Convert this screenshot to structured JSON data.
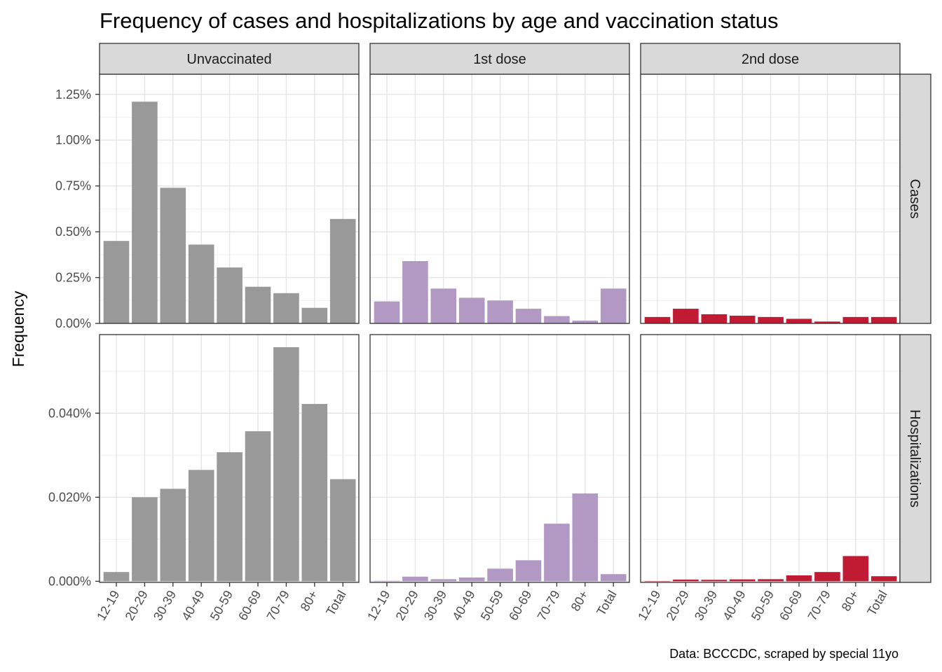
{
  "chart_data": {
    "type": "bar",
    "title": "Frequency of cases and hospitalizations by age and vaccination status",
    "ylabel": "Frequency",
    "caption": "Data: BCCCDC, scraped by special 11yo",
    "categories": [
      "12-19",
      "20-29",
      "30-39",
      "40-49",
      "50-59",
      "60-69",
      "70-79",
      "80+",
      "Total"
    ],
    "columns": [
      "Unvaccinated",
      "1st dose",
      "2nd dose"
    ],
    "rows": [
      "Cases",
      "Hospitalizations"
    ],
    "colors": {
      "Unvaccinated": "#999999",
      "1st dose": "#b299c4",
      "2nd dose": "#c01b33"
    },
    "y_axes": {
      "Cases": {
        "ylim": [
          0,
          0.0136
        ],
        "breaks": [
          0,
          0.0025,
          0.005,
          0.0075,
          0.01,
          0.0125
        ],
        "labels": [
          "0.00%",
          "0.25%",
          "0.50%",
          "0.75%",
          "1.00%",
          "1.25%"
        ]
      },
      "Hospitalizations": {
        "ylim": [
          -2.7e-06,
          0.000587
        ],
        "breaks": [
          0,
          0.0002,
          0.0004
        ],
        "labels": [
          "0.000%",
          "0.020%",
          "0.040%"
        ]
      }
    },
    "series": [
      {
        "row": "Cases",
        "column": "Unvaccinated",
        "values": [
          0.0045,
          0.0121,
          0.0074,
          0.0043,
          0.00305,
          0.002,
          0.00165,
          0.00085,
          0.0057
        ]
      },
      {
        "row": "Cases",
        "column": "1st dose",
        "values": [
          0.0012,
          0.0034,
          0.0019,
          0.0014,
          0.00125,
          0.0008,
          0.0004,
          0.00015,
          0.0019
        ]
      },
      {
        "row": "Cases",
        "column": "2nd dose",
        "values": [
          0.00035,
          0.0008,
          0.0005,
          0.00042,
          0.00035,
          0.00025,
          0.0001,
          0.00035,
          0.00035
        ]
      },
      {
        "row": "Hospitalizations",
        "column": "Unvaccinated",
        "values": [
          2.2e-05,
          0.0002,
          0.00022,
          0.000265,
          0.000307,
          0.000357,
          0.000557,
          0.000422,
          0.000243
        ]
      },
      {
        "row": "Hospitalizations",
        "column": "1st dose",
        "values": [
          1e-06,
          1.1e-05,
          5e-06,
          9e-06,
          3e-05,
          5e-05,
          0.000137,
          0.000209,
          1.7e-05
        ]
      },
      {
        "row": "Hospitalizations",
        "column": "2nd dose",
        "values": [
          5e-07,
          4e-06,
          3.5e-06,
          4.5e-06,
          5e-06,
          1.4e-05,
          2.2e-05,
          6e-05,
          1.2e-05
        ]
      }
    ],
    "grid": true,
    "legend": "none"
  }
}
